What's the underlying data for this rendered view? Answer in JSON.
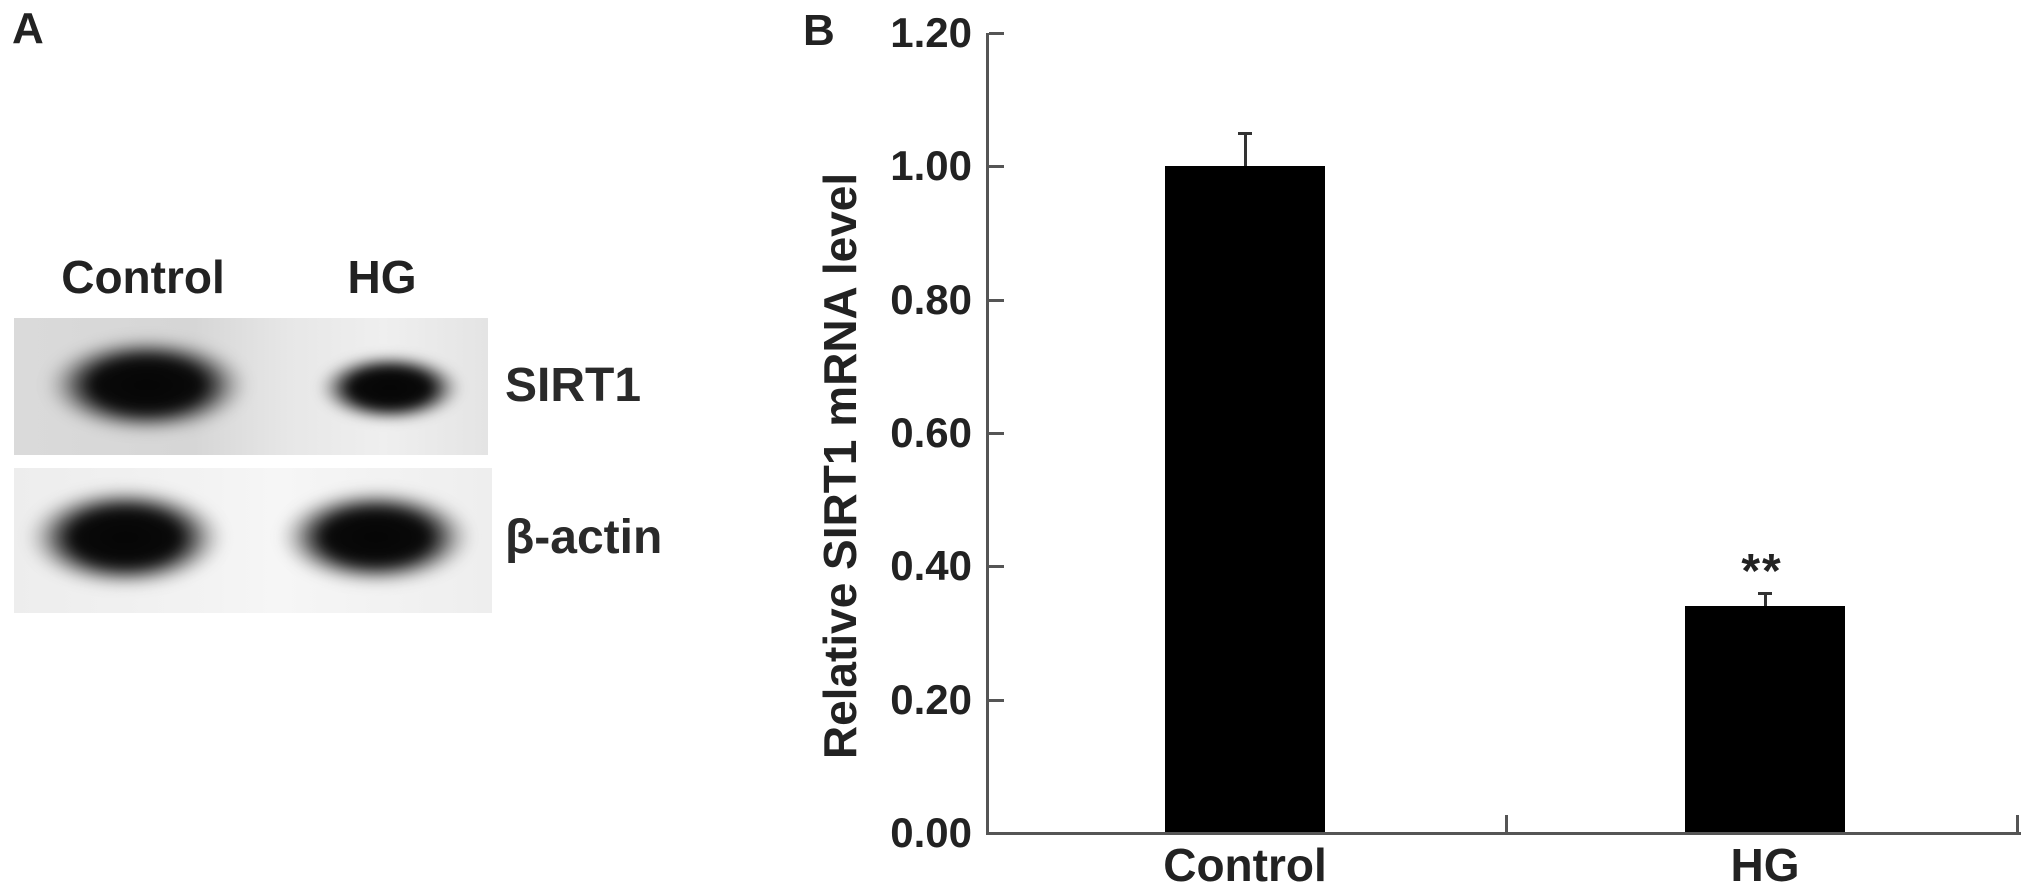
{
  "figure": {
    "panel_a": {
      "label": "A",
      "lane_labels": [
        "Control",
        "HG"
      ],
      "band_labels": [
        "SIRT1",
        "β-actin"
      ]
    },
    "panel_b": {
      "label": "B"
    }
  },
  "chart_data": {
    "type": "bar",
    "title": "",
    "categories": [
      "Control",
      "HG"
    ],
    "values": [
      1.0,
      0.34
    ],
    "errors": [
      0.05,
      0.02
    ],
    "sig_labels": [
      "",
      "**"
    ],
    "ylabel": "Relative SIRT1 mRNA level",
    "xlabel": "",
    "ylim": [
      0.0,
      1.2
    ],
    "yticks": [
      0.0,
      0.2,
      0.4,
      0.6,
      0.8,
      1.0,
      1.2
    ],
    "ytick_format_decimals": 2,
    "grid": false,
    "legend_position": "none",
    "bar_color": "#000000",
    "axis_color": "#555555",
    "error_bar_color": "#333333"
  }
}
